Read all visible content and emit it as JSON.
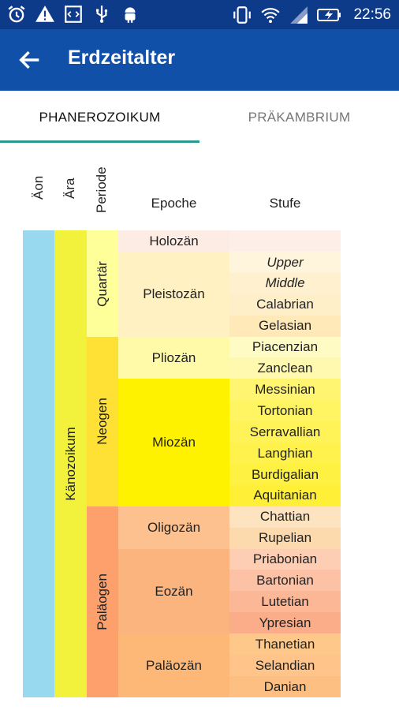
{
  "statusbar": {
    "time": "22:56",
    "left_icons": [
      "alarm-icon",
      "warning-icon",
      "code-icon",
      "usb-icon",
      "android-icon"
    ],
    "right_icons": [
      "vibrate-icon",
      "wifi-icon",
      "signal-icon",
      "battery-charging-icon"
    ]
  },
  "appbar": {
    "title": "Erdzeitalter",
    "back_icon": "arrow-back-icon"
  },
  "tabs": [
    {
      "label": "PHANEROZOIKUM",
      "selected": true
    },
    {
      "label": "PRÄKAMBRIUM",
      "selected": false
    }
  ],
  "colors": {
    "statusbar": "#0e3a8a",
    "appbar": "#1050a8",
    "tab_indicator": "#2a9a8c"
  },
  "table": {
    "headers": {
      "aeon": "Äon",
      "era": "Ära",
      "period": "Periode",
      "epoch": "Epoche",
      "stage": "Stufe"
    },
    "aeon": {
      "label": "",
      "color": "#99d9ef"
    },
    "era": {
      "label": "Känozoikum",
      "color": "#f2f23c"
    },
    "periods": [
      {
        "label": "Quartär",
        "color": "#ffff99"
      },
      {
        "label": "Neogen",
        "color": "#ffe135"
      },
      {
        "label": "Paläogen",
        "color": "#fda06b"
      }
    ],
    "epochs": [
      {
        "label": "Holozän",
        "color": "#fcece4"
      },
      {
        "label": "Pleistozän",
        "color": "#fff1c2"
      },
      {
        "label": "Pliozän",
        "color": "#fffaa8"
      },
      {
        "label": "Miozän",
        "color": "#fff200"
      },
      {
        "label": "Oligozän",
        "color": "#fdc18f"
      },
      {
        "label": "Eozän",
        "color": "#fcb47f"
      },
      {
        "label": "Paläozän",
        "color": "#fdb777"
      }
    ],
    "stages": [
      {
        "label": "",
        "color": "#fdeee8",
        "italic": false
      },
      {
        "label": "Upper",
        "color": "#fff5dc",
        "italic": true
      },
      {
        "label": "Middle",
        "color": "#fff1d0",
        "italic": true
      },
      {
        "label": "Calabrian",
        "color": "#ffefc8",
        "italic": false
      },
      {
        "label": "Gelasian",
        "color": "#ffe9b8",
        "italic": false
      },
      {
        "label": "Piacenzian",
        "color": "#fffbc4",
        "italic": false
      },
      {
        "label": "Zanclean",
        "color": "#fff9b0",
        "italic": false
      },
      {
        "label": "Messinian",
        "color": "#fff571",
        "italic": false
      },
      {
        "label": "Tortonian",
        "color": "#fff461",
        "italic": false
      },
      {
        "label": "Serravallian",
        "color": "#fff357",
        "italic": false
      },
      {
        "label": "Langhian",
        "color": "#fff24c",
        "italic": false
      },
      {
        "label": "Burdigalian",
        "color": "#fff142",
        "italic": false
      },
      {
        "label": "Aquitanian",
        "color": "#fff037",
        "italic": false
      },
      {
        "label": "Chattian",
        "color": "#fde3c0",
        "italic": false
      },
      {
        "label": "Rupelian",
        "color": "#fdd9ae",
        "italic": false
      },
      {
        "label": "Priabonian",
        "color": "#fdcdb4",
        "italic": false
      },
      {
        "label": "Bartonian",
        "color": "#fdc2a5",
        "italic": false
      },
      {
        "label": "Lutetian",
        "color": "#fcb796",
        "italic": false
      },
      {
        "label": "Ypresian",
        "color": "#fbac88",
        "italic": false
      },
      {
        "label": "Thanetian",
        "color": "#fdc88a",
        "italic": false
      },
      {
        "label": "Selandian",
        "color": "#fec48a",
        "italic": false
      },
      {
        "label": "Danian",
        "color": "#febf82",
        "italic": false
      }
    ]
  }
}
